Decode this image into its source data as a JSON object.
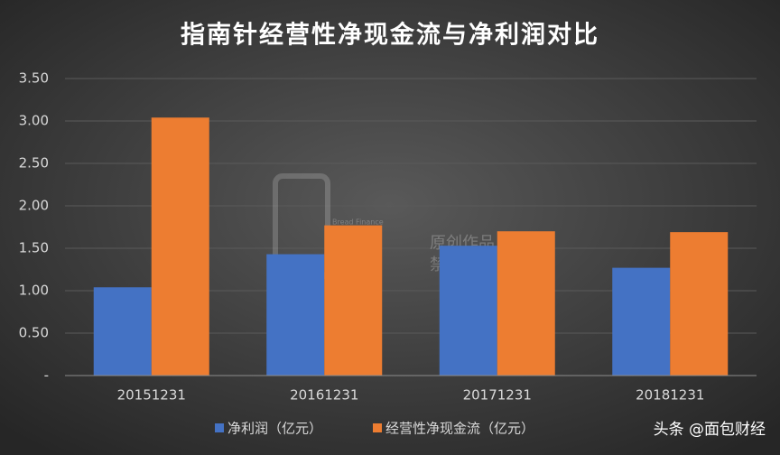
{
  "chart_data": {
    "type": "bar",
    "title": "指南针经营性净现金流与净利润对比",
    "categories": [
      "20151231",
      "20161231",
      "20171231",
      "20181231"
    ],
    "series": [
      {
        "name": "净利润（亿元）",
        "color": "#4472c4",
        "values": [
          1.04,
          1.43,
          1.53,
          1.27
        ]
      },
      {
        "name": "经营性净现金流（亿元）",
        "color": "#ed7d31",
        "values": [
          3.04,
          1.77,
          1.7,
          1.69
        ]
      }
    ],
    "ylim": [
      0,
      3.5
    ],
    "yticks": [
      {
        "value": 0,
        "label": "-"
      },
      {
        "value": 0.5,
        "label": "0.50"
      },
      {
        "value": 1,
        "label": "1.00"
      },
      {
        "value": 1.5,
        "label": "1.50"
      },
      {
        "value": 2,
        "label": "2.00"
      },
      {
        "value": 2.5,
        "label": "2.50"
      },
      {
        "value": 3,
        "label": "3.00"
      },
      {
        "value": 3.5,
        "label": "3.50"
      }
    ],
    "grid": true,
    "legend": "bottom",
    "watermark": [
      "Bread Finance",
      "原创作品",
      "禁止转载"
    ],
    "footer": "头条 @面包财经"
  }
}
